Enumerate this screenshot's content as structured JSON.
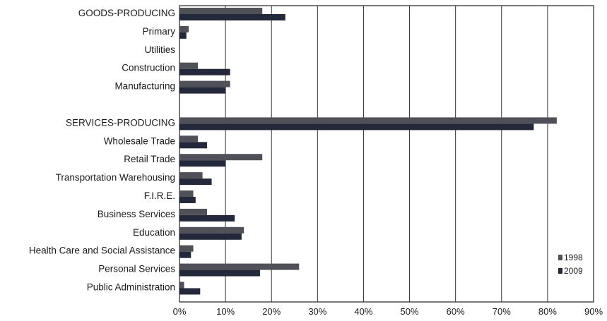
{
  "chart_data": {
    "type": "bar",
    "orientation": "horizontal",
    "categories": [
      "GOODS-PRODUCING",
      "Primary",
      "Utilities",
      "Construction",
      "Manufacturing",
      "",
      "SERVICES-PRODUCING",
      "Wholesale Trade",
      "Retail Trade",
      "Transportation Warehousing",
      "F.I.R.E.",
      "Business Services",
      "Education",
      "Health Care and Social Assistance",
      "Personal Services",
      "Public Administration"
    ],
    "series": [
      {
        "name": "1998",
        "color": "#505059",
        "values": [
          18,
          2,
          0,
          4,
          11,
          null,
          82,
          4,
          18,
          5,
          3,
          6,
          14,
          3,
          26,
          1
        ]
      },
      {
        "name": "2009",
        "color": "#23283a",
        "values": [
          23,
          1.5,
          0,
          11,
          10,
          null,
          77,
          6,
          10,
          7,
          3.5,
          12,
          13.5,
          2.5,
          17.5,
          4.5
        ]
      }
    ],
    "xlim": [
      0,
      90
    ],
    "xticks": [
      "0%",
      "10%",
      "20%",
      "30%",
      "40%",
      "50%",
      "60%",
      "70%",
      "80%",
      "90%"
    ],
    "grid": "vertical",
    "legend_position": "bottom-right",
    "title": "",
    "xlabel": "",
    "ylabel": ""
  }
}
